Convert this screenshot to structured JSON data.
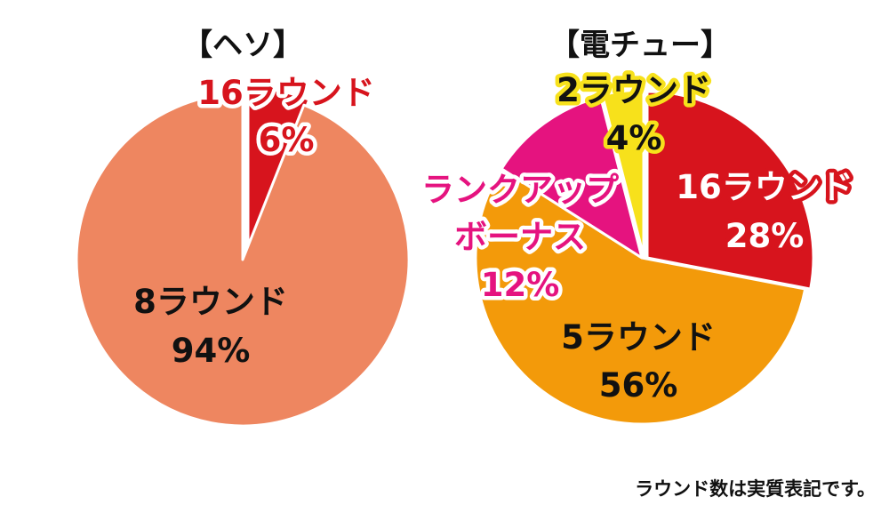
{
  "chart_data": [
    {
      "type": "pie",
      "title": "【ヘソ】",
      "slices": [
        {
          "label": "16ラウンド",
          "value": 6,
          "value_text": "6%",
          "color": "#d7141d",
          "text_fill": "#d7141d",
          "text_stroke": "#ffffff"
        },
        {
          "label": "8ラウンド",
          "value": 94,
          "value_text": "94%",
          "color": "#ee8660",
          "text_fill": "#111111",
          "text_stroke": "none"
        }
      ]
    },
    {
      "type": "pie",
      "title": "【電チュー】",
      "slices": [
        {
          "label": "16ラウンド",
          "value": 28,
          "value_text": "28%",
          "color": "#d7141d",
          "text_fill": "#ffffff",
          "text_stroke": "#d7141d"
        },
        {
          "label": "5ラウンド",
          "value": 56,
          "value_text": "56%",
          "color": "#f39a0a",
          "text_fill": "#111111",
          "text_stroke": "none"
        },
        {
          "label": "ランクアップボーナス",
          "value": 12,
          "value_text": "12%",
          "color": "#e5137f",
          "text_fill": "#e5137f",
          "text_stroke": "#ffffff"
        },
        {
          "label": "2ラウンド",
          "value": 4,
          "value_text": "4%",
          "color": "#f7e11b",
          "text_fill": "#111111",
          "text_stroke": "#f7e11b"
        }
      ]
    }
  ],
  "footnote": "ラウンド数は実質表記です。"
}
